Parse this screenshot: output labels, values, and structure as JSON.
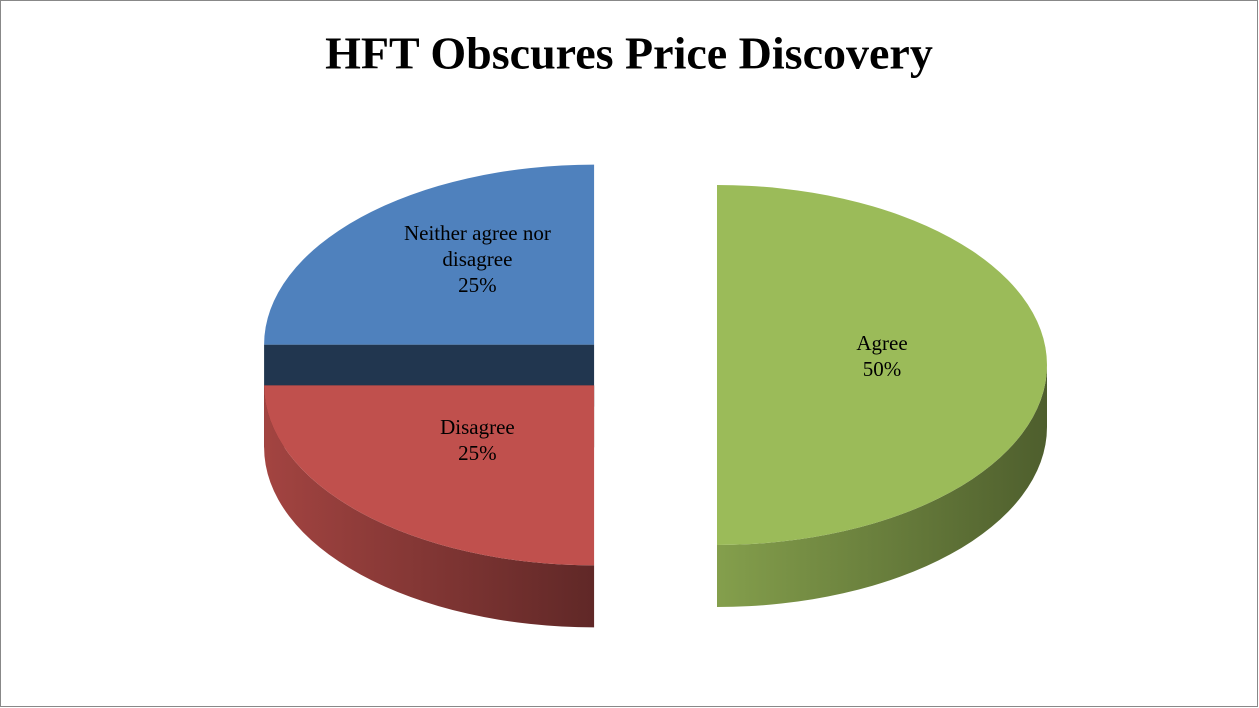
{
  "chart_data": {
    "type": "pie",
    "title": "HFT Obscures Price Discovery",
    "categories": [
      "Agree",
      "Disagree",
      "Neither agree nor disagree"
    ],
    "values": [
      50,
      25,
      25
    ],
    "value_labels": [
      "50%",
      "25%",
      "25%"
    ],
    "colors": [
      "#9bbb59",
      "#c0504d",
      "#4f81bd"
    ]
  }
}
